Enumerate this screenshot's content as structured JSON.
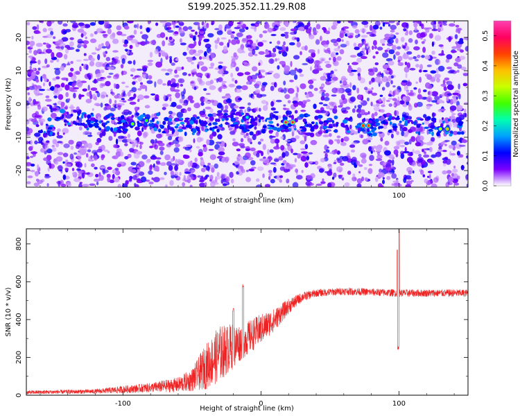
{
  "chart_data": [
    {
      "type": "heatmap",
      "title": "S199.2025.352.11.29.R08",
      "xlabel": "Height of straight line (km)",
      "ylabel": "Frequency (Hz)",
      "xlim": [
        -170,
        150
      ],
      "ylim": [
        -25,
        25
      ],
      "xticks": [
        -100,
        0,
        100
      ],
      "yticks": [
        20,
        10,
        0,
        -10,
        -20
      ],
      "colorbar": {
        "label": "Normalized spectral amplitude",
        "range": [
          0,
          0.55
        ],
        "ticks": [
          "0.0",
          "0.1",
          "0.2",
          "0.3",
          "0.4",
          "0.5"
        ],
        "colors": [
          "#ffffff",
          "#7b00ff",
          "#0000ff",
          "#00a0ff",
          "#00ffb0",
          "#40ff00",
          "#c8ff00",
          "#ffc000",
          "#ff4000",
          "#ff0060",
          "#ff40b0"
        ]
      },
      "ridge": {
        "description": "energy band centred near -6 Hz",
        "points": [
          [
            -150,
            -4
          ],
          [
            -100,
            -6
          ],
          [
            -80,
            -5
          ],
          [
            -60,
            -7
          ],
          [
            -40,
            -6
          ],
          [
            -20,
            -5
          ],
          [
            0,
            -6
          ],
          [
            20,
            -5.5
          ],
          [
            40,
            -6
          ],
          [
            60,
            -6
          ],
          [
            80,
            -7
          ],
          [
            100,
            -6
          ],
          [
            120,
            -6.5
          ],
          [
            140,
            -7
          ]
        ],
        "hotspots": [
          [
            -93,
            -6,
            0.2
          ],
          [
            -83,
            -5,
            0.18
          ],
          [
            -10,
            -4,
            0.15
          ],
          [
            18,
            -5.5,
            0.34
          ],
          [
            23,
            -5.5,
            0.34
          ],
          [
            74,
            -6.5,
            0.3
          ],
          [
            78,
            -6.5,
            0.3
          ],
          [
            130,
            -7.5,
            0.22
          ],
          [
            135,
            -7.5,
            0.26
          ]
        ]
      }
    },
    {
      "type": "line",
      "xlabel": "Height of straight line (km)",
      "ylabel": "SNR (10 * v/v)",
      "xlim": [
        -170,
        150
      ],
      "ylim": [
        0,
        880
      ],
      "xticks": [
        -100,
        0,
        100
      ],
      "yticks": [
        0,
        200,
        400,
        600,
        800
      ],
      "series": [
        {
          "name": "SNR",
          "color": "#ee2222",
          "envelope": {
            "x": [
              -170,
              -120,
              -100,
              -80,
              -60,
              -50,
              -40,
              -30,
              -20,
              -15,
              -10,
              0,
              10,
              20,
              30,
              40,
              60,
              80,
              100,
              120,
              150
            ],
            "mean": [
              15,
              20,
              30,
              40,
              55,
              80,
              150,
              220,
              260,
              280,
              300,
              350,
              400,
              470,
              520,
              540,
              550,
              545,
              540,
              540,
              540
            ],
            "noise": [
              10,
              12,
              20,
              25,
              40,
              60,
              120,
              150,
              120,
              100,
              90,
              80,
              60,
              40,
              25,
              20,
              20,
              20,
              20,
              20,
              20
            ]
          },
          "spikes": [
            {
              "x": -13,
              "value": 590
            },
            {
              "x": -20,
              "value": 460
            },
            {
              "x": 99,
              "value": 780
            },
            {
              "x": 99.8,
              "value": 880
            },
            {
              "x": 99.5,
              "value": 260
            }
          ]
        }
      ]
    }
  ]
}
